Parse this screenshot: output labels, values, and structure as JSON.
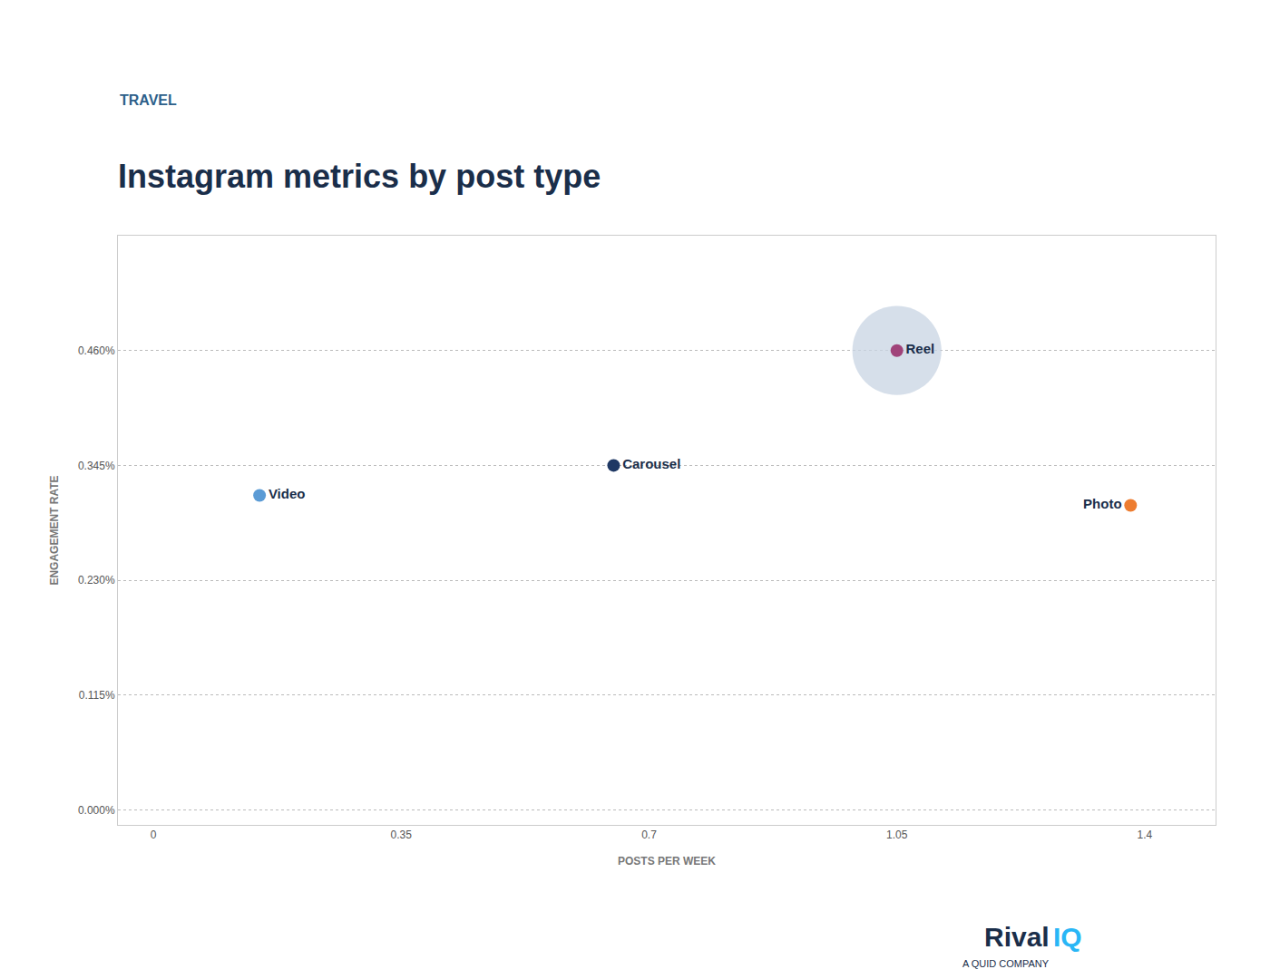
{
  "chart_data": {
    "type": "scatter",
    "title": "Instagram metrics by post type",
    "subtitle": "TRAVEL",
    "xlabel": "POSTS PER WEEK",
    "ylabel": "ENGAGEMENT RATE",
    "points": [
      {
        "label": "Video",
        "x": 0.15,
        "y": 0.00315,
        "color": "#5b9bd5"
      },
      {
        "label": "Carousel",
        "x": 0.65,
        "y": 0.00345,
        "color": "#1f3864"
      },
      {
        "label": "Reel",
        "x": 1.05,
        "y": 0.0046,
        "color": "#a0437a",
        "size": 5000,
        "bubble_color": "#c8d4e3"
      },
      {
        "label": "Photo",
        "x": 1.38,
        "y": 0.00305,
        "color": "#ed7d31"
      }
    ],
    "xlim": [
      -0.05,
      1.5
    ],
    "ylim": [
      -0.00015,
      0.00575
    ],
    "xticks": [
      0,
      0.35,
      0.7,
      1.05,
      1.4
    ],
    "yticks": [
      {
        "value": 0.0,
        "label": "0.000%"
      },
      {
        "value": 0.00115,
        "label": "0.115%"
      },
      {
        "value": 0.0023,
        "label": "0.230%"
      },
      {
        "value": 0.00345,
        "label": "0.345%"
      },
      {
        "value": 0.0046,
        "label": "0.460%"
      }
    ],
    "grid": "y",
    "annotations": [
      {
        "text": "Rival"
      },
      {
        "text": "IQ",
        "color": "#29b6f6"
      },
      {
        "text": "A QUID COMPANY"
      }
    ]
  }
}
